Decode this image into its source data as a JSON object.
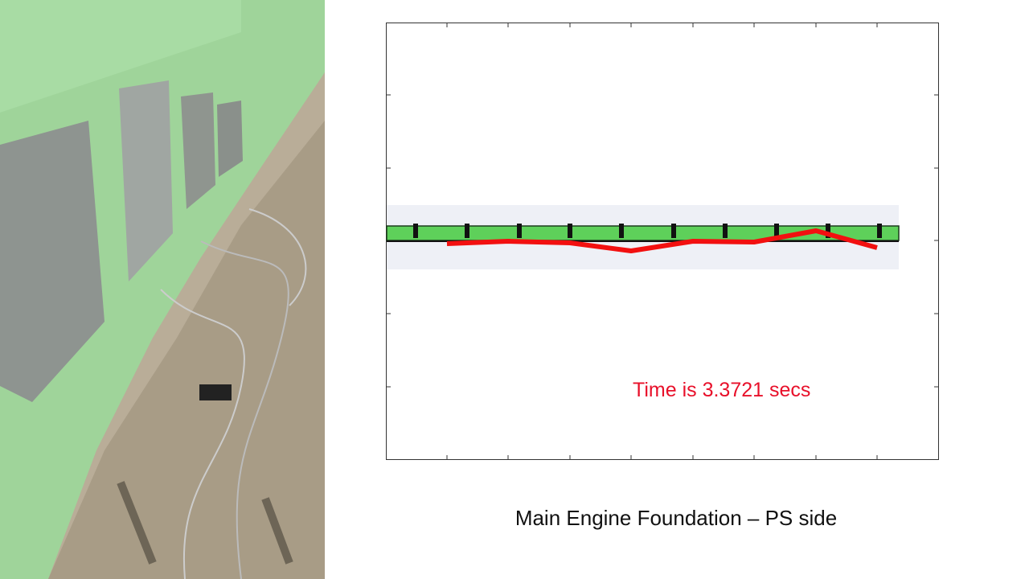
{
  "slide": {
    "annotation": "Time is 3.3721 secs",
    "caption": "Main Engine Foundation – PS side"
  }
}
